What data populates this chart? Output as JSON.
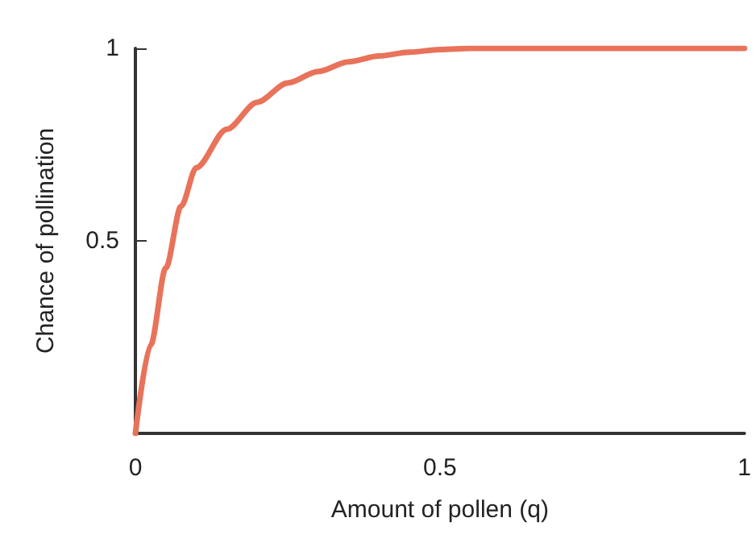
{
  "chart_data": {
    "type": "line",
    "xlabel": "Amount of pollen (q)",
    "ylabel": "Chance of pollination",
    "x": [
      0,
      0.025,
      0.05,
      0.075,
      0.1,
      0.15,
      0.2,
      0.25,
      0.3,
      0.35,
      0.4,
      0.45,
      0.5,
      0.55,
      0.6,
      0.7,
      0.8,
      0.9,
      1
    ],
    "series": [
      {
        "color": "#e8735a",
        "values": [
          0,
          0.23,
          0.43,
          0.59,
          0.69,
          0.79,
          0.86,
          0.91,
          0.94,
          0.965,
          0.98,
          0.99,
          0.997,
          1,
          1,
          1,
          1,
          1,
          1
        ]
      }
    ],
    "xlim": [
      0,
      1
    ],
    "xticks": [
      0,
      0.5,
      1
    ],
    "ylim": [
      0,
      1
    ],
    "yticks": [
      {
        "value": 0,
        "label": null
      },
      0.5,
      1
    ],
    "grid": false,
    "marker": "none",
    "line_style": "solid"
  }
}
